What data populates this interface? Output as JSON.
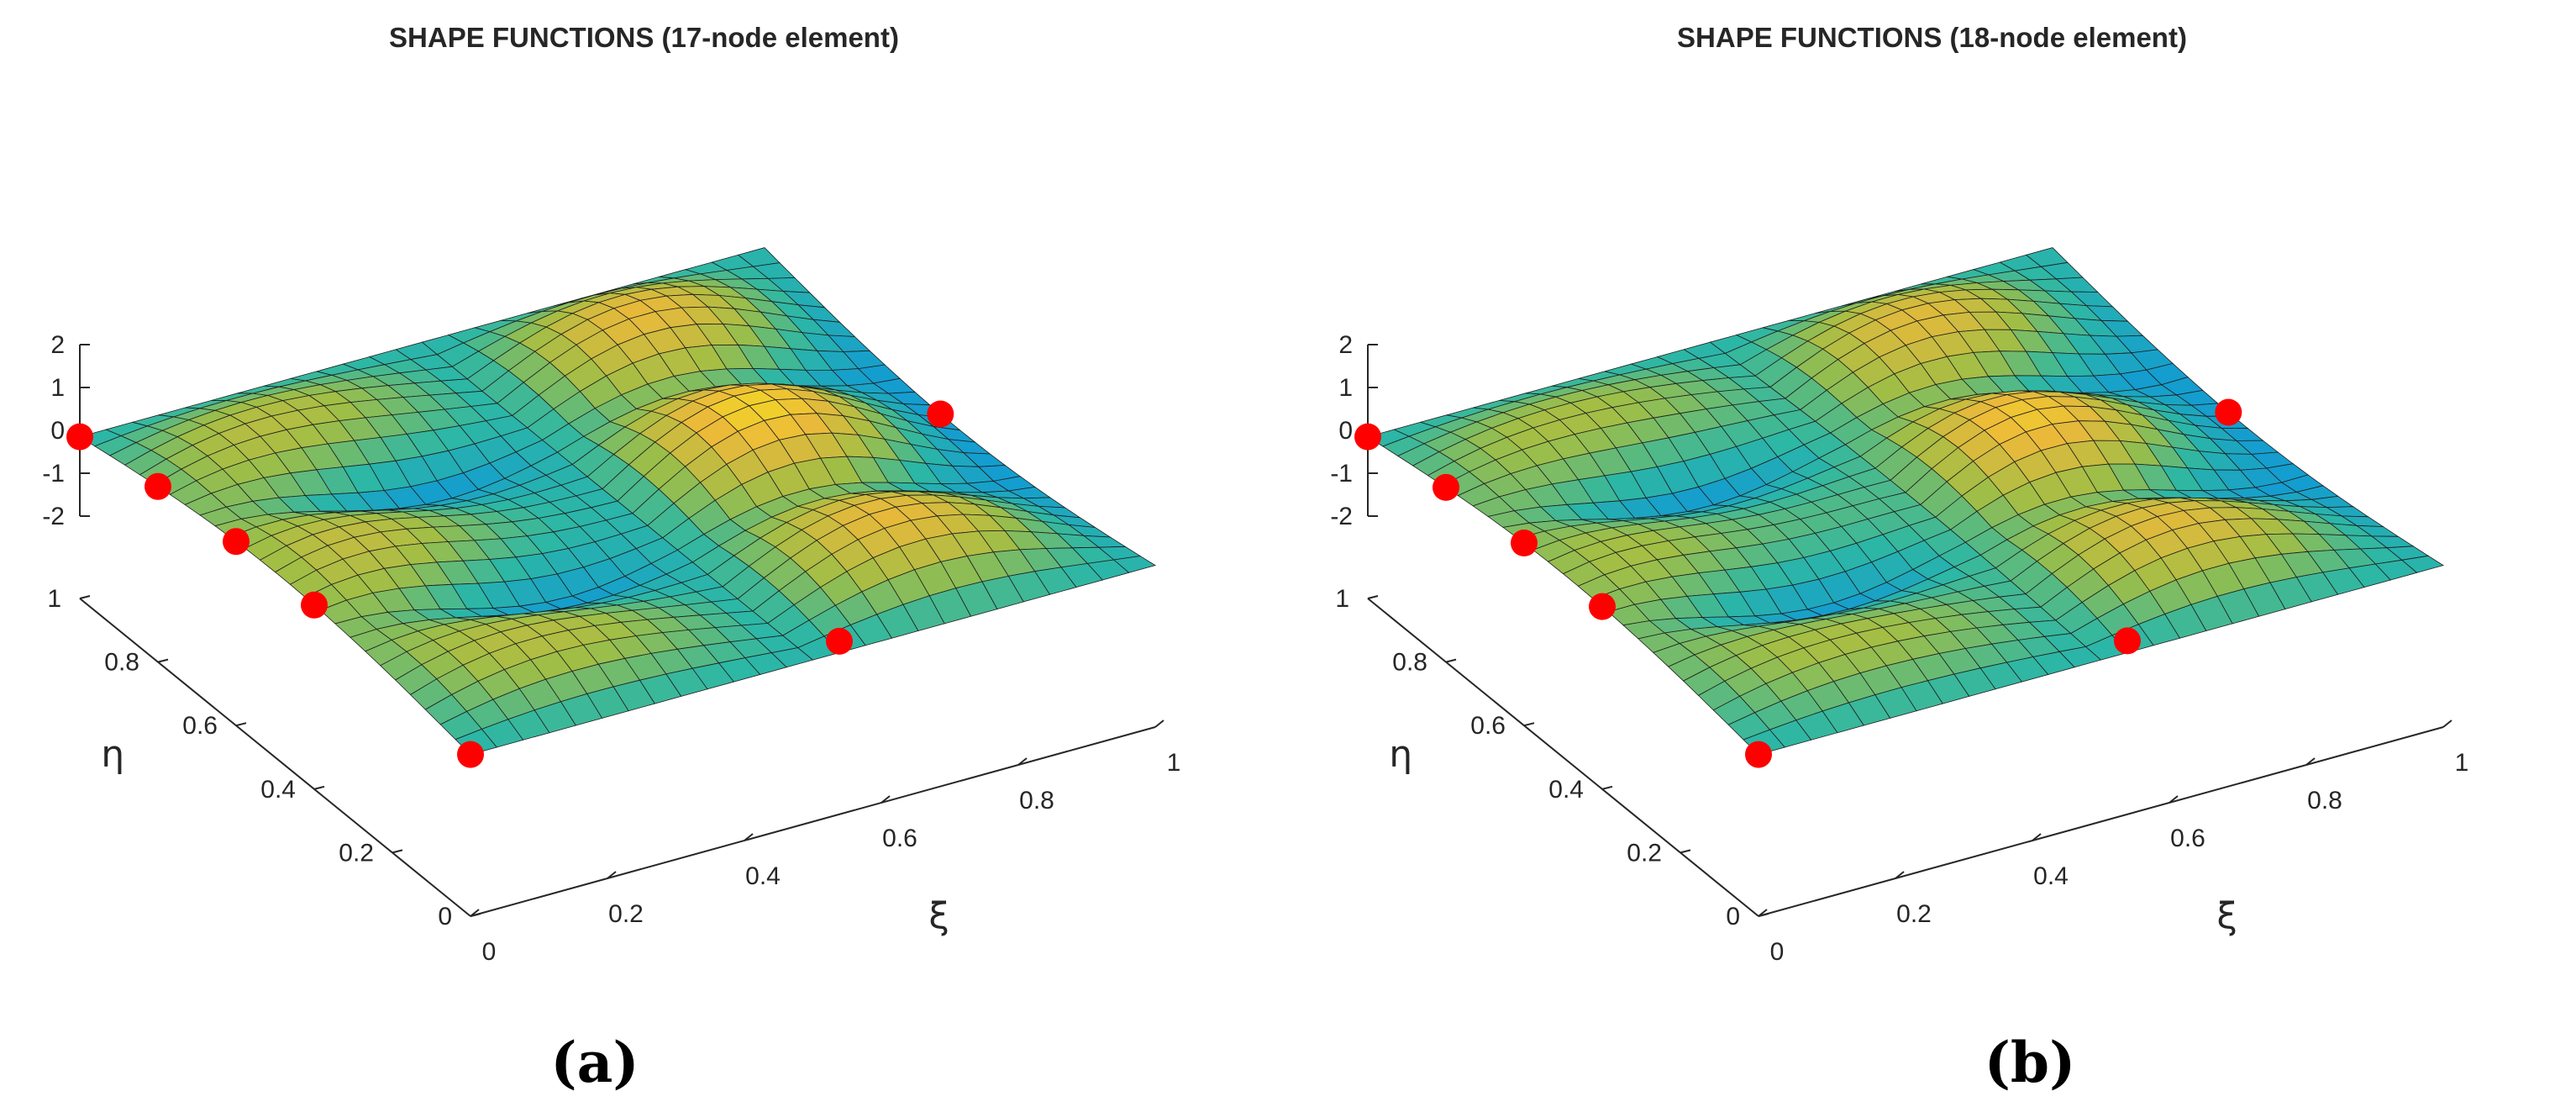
{
  "chart_data": [
    {
      "type": "surface3d",
      "panel_label": "(a)",
      "title": "SHAPE FUNCTIONS (17-node element)",
      "xlabel": "ξ",
      "ylabel": "η",
      "zlabel": "",
      "xlim": [
        0,
        1
      ],
      "ylim": [
        0,
        1
      ],
      "zlim": [
        -2,
        2
      ],
      "x_ticks": [
        "0",
        "0.2",
        "0.4",
        "0.6",
        "0.8",
        "1"
      ],
      "y_ticks": [
        "0",
        "0.2",
        "0.4",
        "0.6",
        "0.8",
        "1"
      ],
      "z_ticks": [
        "-2",
        "-1",
        "0",
        "1",
        "2"
      ],
      "colormap": "parula",
      "grid": false,
      "node_color": "#ff0000"
    },
    {
      "type": "surface3d",
      "panel_label": "(b)",
      "title": "SHAPE FUNCTIONS (18-node element)",
      "xlabel": "ξ",
      "ylabel": "η",
      "zlabel": "",
      "xlim": [
        0,
        1
      ],
      "ylim": [
        0,
        1
      ],
      "zlim": [
        -2,
        2
      ],
      "x_ticks": [
        "0",
        "0.2",
        "0.4",
        "0.6",
        "0.8",
        "1"
      ],
      "y_ticks": [
        "0",
        "0.2",
        "0.4",
        "0.6",
        "0.8",
        "1"
      ],
      "z_ticks": [
        "-2",
        "-1",
        "0",
        "1",
        "2"
      ],
      "colormap": "parula",
      "grid": false,
      "node_color": "#ff0000"
    }
  ]
}
